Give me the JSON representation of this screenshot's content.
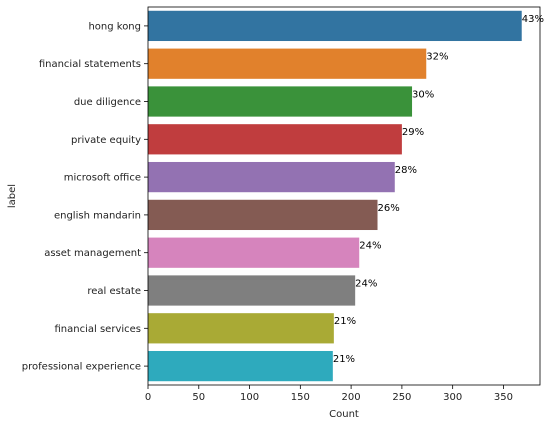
{
  "chart_data": {
    "type": "bar",
    "orientation": "horizontal",
    "categories": [
      "hong kong",
      "financial statements",
      "due diligence",
      "private equity",
      "microsoft office",
      "english mandarin",
      "asset management",
      "real estate",
      "financial services",
      "professional experience"
    ],
    "values": [
      368,
      274,
      260,
      250,
      243,
      226,
      208,
      204,
      183,
      182
    ],
    "data_labels": [
      "43%",
      "32%",
      "30%",
      "29%",
      "28%",
      "26%",
      "24%",
      "24%",
      "21%",
      "21%"
    ],
    "colors": [
      "#3274a1",
      "#e1812c",
      "#3a923a",
      "#c03d3e",
      "#9372b2",
      "#845b53",
      "#d684bd",
      "#7f7f7f",
      "#a9aa35",
      "#2eaabd"
    ],
    "title": "",
    "xlabel": "Count",
    "ylabel": "label",
    "xlim": [
      0,
      386
    ],
    "xticks": [
      0,
      50,
      100,
      150,
      200,
      250,
      300,
      350
    ],
    "grid": false,
    "legend": false
  }
}
